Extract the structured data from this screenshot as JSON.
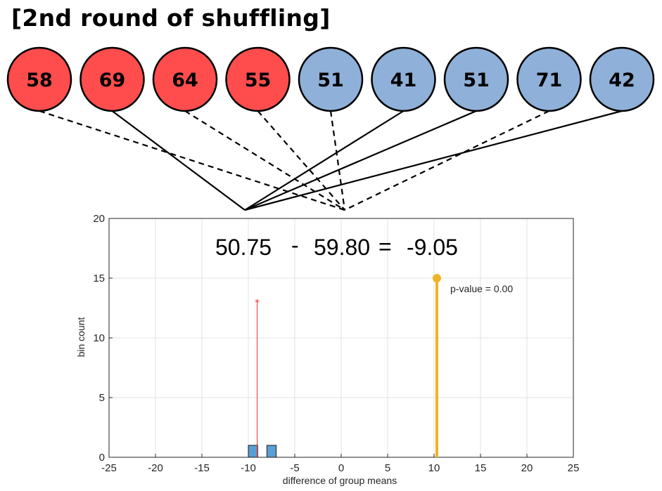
{
  "title": "[2nd round of shuffling]",
  "colors": {
    "red_group": "#ff4d4d",
    "blue_group": "#8fb0d8",
    "observed": "#f0b323",
    "shuffle_marker": "#e83030",
    "hist_bar": "#5a9fd4"
  },
  "balls": [
    {
      "label": "58",
      "group": "red",
      "line": "dashed",
      "target": "right"
    },
    {
      "label": "69",
      "group": "red",
      "line": "solid",
      "target": "left"
    },
    {
      "label": "64",
      "group": "red",
      "line": "dashed",
      "target": "right"
    },
    {
      "label": "55",
      "group": "red",
      "line": "dashed",
      "target": "right"
    },
    {
      "label": "51",
      "group": "blue",
      "line": "dashed",
      "target": "right"
    },
    {
      "label": "41",
      "group": "blue",
      "line": "solid",
      "target": "left"
    },
    {
      "label": "51",
      "group": "blue",
      "line": "solid",
      "target": "left"
    },
    {
      "label": "71",
      "group": "blue",
      "line": "dashed",
      "target": "right"
    },
    {
      "label": "42",
      "group": "blue",
      "line": "solid",
      "target": "left"
    }
  ],
  "equation": {
    "mean_a": "50.75",
    "minus": "-",
    "mean_b": "59.80",
    "equals": "=",
    "result": "-9.05"
  },
  "chart_data": {
    "type": "bar",
    "title": "",
    "xlabel": "difference of group means",
    "ylabel": "bin count",
    "xlim": [
      -25,
      25
    ],
    "ylim": [
      0,
      20
    ],
    "xticks": [
      -25,
      -20,
      -15,
      -10,
      -5,
      0,
      5,
      10,
      15,
      20,
      25
    ],
    "yticks": [
      0,
      5,
      10,
      15,
      20
    ],
    "grid": true,
    "histogram": [
      {
        "x": -9.5,
        "count": 1
      },
      {
        "x": -7.5,
        "count": 1
      }
    ],
    "current_shuffle": {
      "x": -9.05,
      "height": 13
    },
    "observed": {
      "x": 10.3,
      "height": 15
    },
    "annotation": "p-value = 0.00"
  }
}
